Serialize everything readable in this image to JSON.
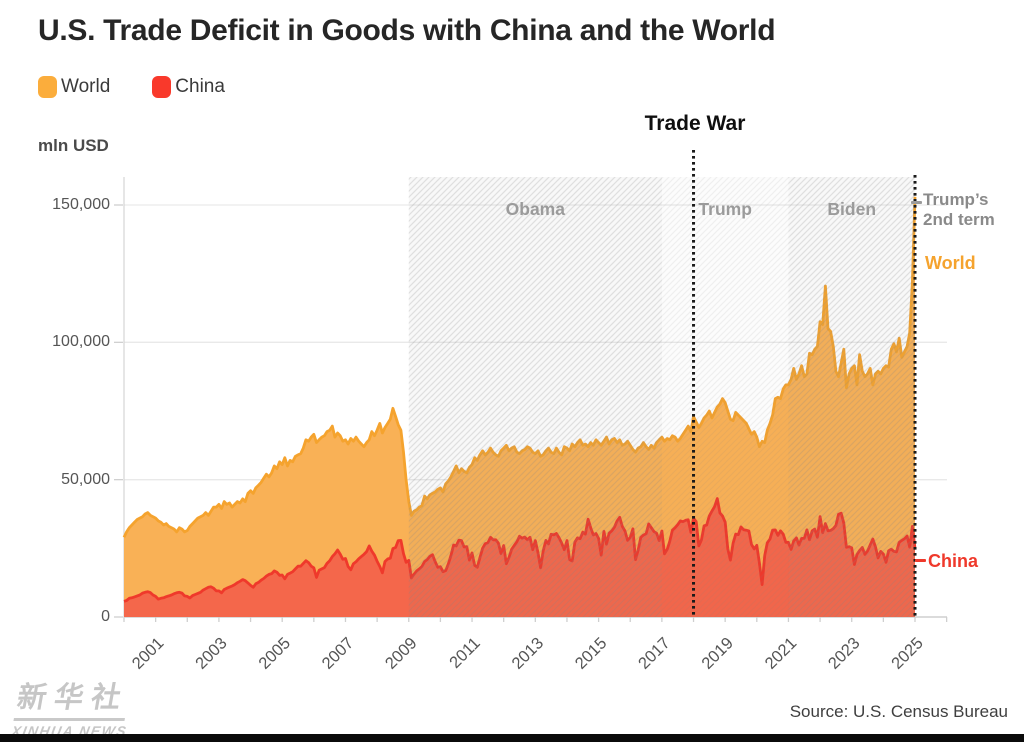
{
  "title": "U.S. Trade Deficit in Goods with China and the World",
  "legend": {
    "world": "World",
    "china": "China"
  },
  "y_axis_title": "mln USD",
  "annotations": {
    "trade_war": "Trade War",
    "trump_second_term_line1": "Trump’s",
    "trump_second_term_line2": "2nd term",
    "world_series_label": "World",
    "china_series_label": "China"
  },
  "source": "Source: U.S. Census Bureau",
  "watermark": {
    "cn": "新华社",
    "en": "XINHUA NEWS"
  },
  "colors": {
    "world_fill": "#F9B156",
    "world_line": "#F5A32E",
    "china_fill": "#F4674B",
    "china_line": "#EF392B",
    "grid": "#e9e9e9",
    "axis": "#cfcfcf",
    "event_line": "#1a1a1a",
    "era_dark_wash": "rgba(125,125,125,0.055)",
    "era_light_wash": "rgba(125,125,125,0.018)"
  },
  "chart_data": {
    "type": "area",
    "title": "U.S. Trade Deficit in Goods with China and the World",
    "ylabel": "mln USD",
    "x_start_year": 2000,
    "x_months_per_point": 1,
    "ylim": [
      0,
      160000
    ],
    "y_ticks": [
      0,
      50000,
      100000,
      150000
    ],
    "y_tick_labels": [
      "0",
      "50,000",
      "100,000",
      "150,000"
    ],
    "x_tick_label_years": [
      2001,
      2003,
      2005,
      2007,
      2009,
      2011,
      2013,
      2015,
      2017,
      2019,
      2021,
      2023,
      2025
    ],
    "grid": true,
    "legend_position": "top-left",
    "eras": [
      {
        "label": "Obama",
        "start_year": 2009,
        "end_year": 2017,
        "shade": "dark"
      },
      {
        "label": "Trump",
        "start_year": 2017,
        "end_year": 2021,
        "shade": "light"
      },
      {
        "label": "Biden",
        "start_year": 2021,
        "end_year": 2025,
        "shade": "dark"
      }
    ],
    "events": [
      {
        "name": "trade_war_line",
        "year": 2018.0
      },
      {
        "name": "trump_second_term_line",
        "year": 2025.0
      }
    ],
    "series": [
      {
        "name": "World",
        "line_color": "#F5A32E",
        "fill_color": "#F9B156",
        "values": [
          29000,
          31000,
          32500,
          33500,
          34500,
          35500,
          36000,
          36500,
          37500,
          38000,
          37000,
          36500,
          36000,
          35000,
          34500,
          33500,
          34000,
          33000,
          32500,
          32000,
          31000,
          32500,
          32000,
          31000,
          31500,
          33000,
          34000,
          35000,
          36000,
          36500,
          37000,
          38000,
          37000,
          38500,
          40000,
          40000,
          41000,
          39500,
          42000,
          41000,
          41500,
          40000,
          41000,
          42000,
          41500,
          43000,
          42000,
          45000,
          46000,
          45000,
          47000,
          48000,
          49000,
          50500,
          52000,
          51000,
          52500,
          55000,
          54000,
          56500,
          55500,
          58000,
          55000,
          57000,
          56500,
          58500,
          59000,
          59500,
          61500,
          64500,
          64000,
          65500,
          66500,
          63500,
          64500,
          65500,
          66000,
          67500,
          68000,
          69500,
          65500,
          67000,
          66000,
          64000,
          64500,
          63000,
          65000,
          64000,
          65500,
          64000,
          63000,
          62000,
          63500,
          64500,
          67500,
          66000,
          68000,
          70500,
          67000,
          69000,
          70500,
          72000,
          76000,
          73000,
          70000,
          68000,
          60000,
          50000,
          42000,
          37000,
          38500,
          39000,
          40000,
          40500,
          44000,
          43000,
          44500,
          45000,
          45500,
          46500,
          47000,
          45500,
          48500,
          49500,
          51000,
          53000,
          55000,
          52500,
          54000,
          53000,
          52500,
          54500,
          55500,
          58000,
          57000,
          59000,
          60500,
          59000,
          60000,
          61500,
          60000,
          59000,
          58500,
          60500,
          61500,
          62500,
          60500,
          61500,
          62000,
          60000,
          59500,
          60500,
          61000,
          62000,
          61500,
          60000,
          59500,
          60500,
          58500,
          59000,
          60500,
          61500,
          60000,
          59500,
          61500,
          60000,
          59000,
          62000,
          61500,
          60500,
          63000,
          62000,
          63500,
          64500,
          62500,
          63000,
          62000,
          63500,
          62500,
          64500,
          63500,
          62500,
          64000,
          65500,
          63000,
          64500,
          65000,
          63500,
          64500,
          62500,
          63000,
          64000,
          62500,
          61000,
          60000,
          61500,
          62000,
          63500,
          62000,
          61000,
          62500,
          61500,
          63500,
          64500,
          65500,
          64000,
          65000,
          64500,
          66000,
          65500,
          64000,
          65000,
          66500,
          68000,
          69500,
          67500,
          73000,
          71000,
          69000,
          70500,
          72500,
          73500,
          75000,
          72500,
          74500,
          76500,
          77500,
          79500,
          78000,
          75000,
          72000,
          71500,
          74500,
          73500,
          72500,
          71500,
          70500,
          68500,
          66500,
          67500,
          65500,
          62000,
          64000,
          63500,
          68000,
          70500,
          73500,
          79500,
          80000,
          79500,
          83000,
          84500,
          84500,
          86500,
          90500,
          86500,
          88500,
          91500,
          87500,
          88500,
          96000,
          95500,
          97500,
          98500,
          107500,
          106500,
          120500,
          105000,
          104000,
          98500,
          89500,
          87500,
          92500,
          97500,
          83500,
          88500,
          90500,
          91500,
          84500,
          95500,
          89500,
          87500,
          88500,
          90500,
          84500,
          88500,
          89500,
          88500,
          90500,
          91500,
          91000,
          97500,
          99500,
          96500,
          101500,
          94500,
          96500,
          98500,
          103500,
          122000,
          153000
        ]
      },
      {
        "name": "China",
        "line_color": "#EF392B",
        "fill_color": "#F4674B",
        "values": [
          5700,
          6000,
          6800,
          7000,
          7300,
          7700,
          8000,
          8700,
          9000,
          9200,
          8900,
          8000,
          7500,
          6500,
          6800,
          7000,
          7400,
          7700,
          8000,
          8500,
          8800,
          9000,
          8700,
          7700,
          7500,
          6900,
          7800,
          8200,
          8600,
          9000,
          9800,
          10300,
          10800,
          11000,
          10500,
          9500,
          9500,
          8800,
          10000,
          10500,
          10900,
          11300,
          11800,
          12500,
          13000,
          13600,
          13200,
          12400,
          11500,
          10800,
          12100,
          12600,
          13400,
          14000,
          14900,
          15500,
          15800,
          16800,
          16300,
          15200,
          15300,
          13900,
          15500,
          16000,
          16500,
          17500,
          18500,
          18500,
          19500,
          20500,
          19800,
          18500,
          17900,
          14400,
          17000,
          17500,
          18000,
          19500,
          20500,
          22000,
          23000,
          24400,
          22900,
          21000,
          21300,
          18400,
          17200,
          19400,
          20100,
          21200,
          22000,
          22800,
          23800,
          25900,
          24000,
          22500,
          20300,
          18400,
          16100,
          20200,
          21100,
          21400,
          24900,
          25300,
          27800,
          27900,
          23100,
          19900,
          20600,
          14200,
          15600,
          16800,
          17500,
          18400,
          20200,
          20900,
          22100,
          22700,
          20200,
          18100,
          18300,
          16500,
          16900,
          19300,
          22300,
          26200,
          25900,
          28000,
          27800,
          25500,
          25600,
          20700,
          23300,
          18800,
          18100,
          21600,
          25000,
          26700,
          27000,
          29000,
          28100,
          28100,
          26900,
          23100,
          26000,
          19400,
          21700,
          24600,
          26000,
          27400,
          29400,
          28700,
          29100,
          28100,
          29000,
          24500,
          27800,
          23400,
          17900,
          24100,
          27900,
          26600,
          30100,
          29900,
          30400,
          28900,
          26900,
          24500,
          27800,
          20900,
          20400,
          27300,
          28800,
          28500,
          30900,
          30200,
          35600,
          32500,
          29900,
          30400,
          28600,
          22500,
          31200,
          26500,
          30500,
          31400,
          32700,
          35000,
          36300,
          33000,
          31300,
          27900,
          28900,
          32100,
          20900,
          24300,
          29000,
          29800,
          30300,
          33900,
          32500,
          31100,
          30500,
          27800,
          31300,
          23000,
          24600,
          27600,
          31600,
          32500,
          33600,
          35000,
          34700,
          35200,
          35400,
          30800,
          36000,
          34700,
          25900,
          28000,
          33200,
          33500,
          36800,
          38600,
          40200,
          43100,
          37900,
          36800,
          34500,
          24800,
          20700,
          26900,
          30200,
          30000,
          32800,
          31800,
          31600,
          31300,
          26400,
          24800,
          26100,
          19700,
          11800,
          22300,
          27000,
          28400,
          31600,
          31700,
          29700,
          31400,
          30200,
          27200,
          27200,
          24600,
          27700,
          28800,
          26200,
          28600,
          28600,
          31700,
          28100,
          31400,
          32000,
          29000,
          36500,
          30700,
          34000,
          31400,
          31500,
          32200,
          33300,
          37400,
          37800,
          34200,
          25400,
          25600,
          25200,
          19100,
          22800,
          24200,
          25300,
          22800,
          24000,
          26200,
          28400,
          25500,
          21500,
          23900,
          22900,
          19900,
          24100,
          24700,
          23900,
          23700,
          27200,
          27900,
          28500,
          29500,
          25400,
          33000,
          25000
        ]
      }
    ]
  }
}
